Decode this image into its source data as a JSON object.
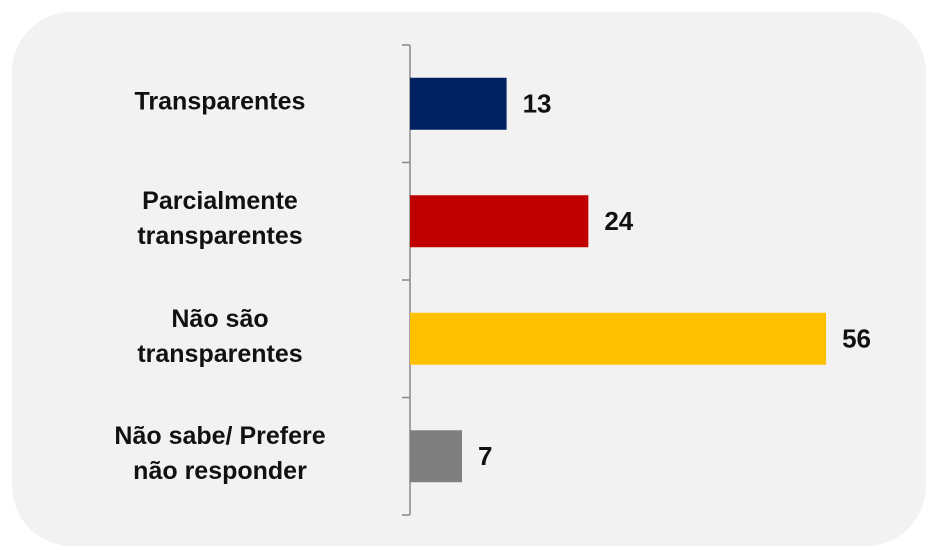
{
  "chart_data": {
    "type": "bar",
    "orientation": "horizontal",
    "categories": [
      "Transparentes",
      "Parcialmente\ntransparentes",
      "Não são\ntransparentes",
      "Não sabe/ Prefere\nnão responder"
    ],
    "values": [
      13,
      24,
      56,
      7
    ],
    "colors": [
      "#002060",
      "#c00000",
      "#ffc000",
      "#7f7f7f"
    ]
  }
}
